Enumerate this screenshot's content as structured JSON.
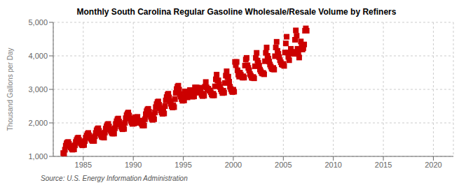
{
  "chart_data": {
    "type": "scatter",
    "title": "Monthly South Carolina Regular Gasoline Wholesale/Resale Volume by Refiners",
    "ylabel": "Thousand Gallons per Day",
    "annotation": "Source: U.S. Energy Information Administration",
    "color": "#cc0000",
    "marker": "square",
    "grid": true,
    "xlim": [
      1982.0,
      2022.0
    ],
    "ylim": [
      1000,
      5000
    ],
    "xticks": [
      1985,
      1990,
      1995,
      2000,
      2005,
      2010,
      2015,
      2020
    ],
    "yticks": [
      {
        "value": 1000,
        "label": "1,000"
      },
      {
        "value": 2000,
        "label": "2,000"
      },
      {
        "value": 3000,
        "label": "3,000"
      },
      {
        "value": 4000,
        "label": "4,000"
      },
      {
        "value": 5000,
        "label": "5,000"
      }
    ],
    "x": [
      1983.0,
      1983.083,
      1983.167,
      1983.25,
      1983.333,
      1983.417,
      1983.5,
      1983.583,
      1983.667,
      1983.75,
      1983.833,
      1983.917,
      1984.0,
      1984.083,
      1984.167,
      1984.25,
      1984.333,
      1984.417,
      1984.5,
      1984.583,
      1984.667,
      1984.75,
      1984.833,
      1984.917,
      1985.0,
      1985.083,
      1985.167,
      1985.25,
      1985.333,
      1985.417,
      1985.5,
      1985.583,
      1985.667,
      1985.75,
      1985.833,
      1985.917,
      1986.0,
      1986.083,
      1986.167,
      1986.25,
      1986.333,
      1986.417,
      1986.5,
      1986.583,
      1986.667,
      1986.75,
      1986.833,
      1986.917,
      1987.0,
      1987.083,
      1987.167,
      1987.25,
      1987.333,
      1987.417,
      1987.5,
      1987.583,
      1987.667,
      1987.75,
      1987.833,
      1987.917,
      1988.0,
      1988.083,
      1988.167,
      1988.25,
      1988.333,
      1988.417,
      1988.5,
      1988.583,
      1988.667,
      1988.75,
      1988.833,
      1988.917,
      1989.0,
      1989.083,
      1989.167,
      1989.25,
      1989.333,
      1989.417,
      1989.5,
      1989.583,
      1989.667,
      1989.75,
      1989.833,
      1989.917,
      1990.0,
      1990.083,
      1990.167,
      1990.25,
      1990.333,
      1990.417,
      1990.5,
      1990.583,
      1990.667,
      1990.75,
      1990.833,
      1990.917,
      1991.0,
      1991.083,
      1991.167,
      1991.25,
      1991.333,
      1991.417,
      1991.5,
      1991.583,
      1991.667,
      1991.75,
      1991.833,
      1991.917,
      1992.0,
      1992.083,
      1992.167,
      1992.25,
      1992.333,
      1992.417,
      1992.5,
      1992.583,
      1992.667,
      1992.75,
      1992.833,
      1992.917,
      1993.0,
      1993.083,
      1993.167,
      1993.25,
      1993.333,
      1993.417,
      1993.5,
      1993.583,
      1993.667,
      1993.75,
      1993.833,
      1993.917,
      1994.0,
      1994.083,
      1994.167,
      1994.25,
      1994.333,
      1994.417,
      1994.5,
      1994.583,
      1994.667,
      1994.75,
      1994.833,
      1994.917,
      1995.0,
      1995.083,
      1995.167,
      1995.25,
      1995.333,
      1995.417,
      1995.5,
      1995.583,
      1995.667,
      1995.75,
      1995.833,
      1995.917,
      1996.0,
      1996.083,
      1996.167,
      1996.25,
      1996.333,
      1996.417,
      1996.5,
      1996.583,
      1996.667,
      1996.75,
      1996.833,
      1996.917,
      1997.0,
      1997.083,
      1997.167,
      1997.25,
      1997.333,
      1997.417,
      1997.5,
      1997.583,
      1997.667,
      1997.75,
      1997.833,
      1997.917,
      1998.0,
      1998.083,
      1998.167,
      1998.25,
      1998.333,
      1998.417,
      1998.5,
      1998.583,
      1998.667,
      1998.75,
      1998.833,
      1998.917,
      1999.0,
      1999.083,
      1999.167,
      1999.25,
      1999.333,
      1999.417,
      1999.5,
      1999.583,
      1999.667,
      1999.75,
      1999.833,
      1999.917,
      2000.0,
      2000.083,
      2000.167,
      2000.25,
      2000.333,
      2000.417,
      2000.5,
      2000.583,
      2000.667,
      2000.75,
      2000.833,
      2000.917,
      2001.0,
      2001.083,
      2001.167,
      2001.25,
      2001.333,
      2001.417,
      2001.5,
      2001.583,
      2001.667,
      2001.75,
      2001.833,
      2001.917,
      2002.0,
      2002.083,
      2002.167,
      2002.25,
      2002.333,
      2002.417,
      2002.5,
      2002.583,
      2002.667,
      2002.75,
      2002.833,
      2002.917,
      2003.0,
      2003.083,
      2003.167,
      2003.25,
      2003.333,
      2003.417,
      2003.5,
      2003.583,
      2003.667,
      2003.75,
      2003.833,
      2003.917,
      2004.0,
      2004.083,
      2004.167,
      2004.25,
      2004.333,
      2004.417,
      2004.5,
      2004.583,
      2004.667,
      2004.75,
      2004.833,
      2004.917,
      2005.0,
      2005.083,
      2005.167,
      2005.25,
      2005.333,
      2005.417,
      2005.5,
      2005.583,
      2005.667,
      2005.75,
      2005.833,
      2005.917,
      2006.0,
      2006.083,
      2006.167,
      2006.25,
      2006.333,
      2006.417,
      2006.5,
      2006.583,
      2006.667,
      2006.75,
      2006.833,
      2006.917,
      2007.0,
      2007.083,
      2007.167,
      2007.25,
      2007.333
    ],
    "values": [
      1100,
      1080,
      1200,
      1320,
      1390,
      1420,
      1430,
      1370,
      1310,
      1270,
      1230,
      1200,
      1240,
      1210,
      1330,
      1430,
      1490,
      1540,
      1560,
      1490,
      1430,
      1390,
      1350,
      1330,
      1370,
      1340,
      1460,
      1560,
      1620,
      1670,
      1700,
      1630,
      1570,
      1530,
      1490,
      1460,
      1500,
      1460,
      1600,
      1700,
      1780,
      1820,
      1840,
      1760,
      1690,
      1640,
      1590,
      1570,
      1600,
      1560,
      1710,
      1830,
      1900,
      1950,
      1970,
      1890,
      1810,
      1760,
      1710,
      1680,
      1730,
      1680,
      1840,
      1970,
      2050,
      2110,
      2130,
      2040,
      1960,
      1900,
      1850,
      1810,
      1870,
      1820,
      2000,
      2140,
      2230,
      2280,
      2310,
      2220,
      2130,
      2060,
      2010,
      1970,
      2040,
      1980,
      2170,
      2060,
      2120,
      2180,
      2060,
      2000,
      2070,
      2020,
      1970,
      1920,
      1960,
      1920,
      2110,
      2260,
      2350,
      2400,
      2420,
      2330,
      2240,
      2180,
      2120,
      2090,
      2160,
      2110,
      2310,
      2470,
      2560,
      2620,
      2640,
      2540,
      2440,
      2370,
      2310,
      2270,
      2340,
      2280,
      2500,
      2670,
      2770,
      2840,
      2870,
      2760,
      2650,
      2570,
      2500,
      2460,
      2530,
      2470,
      2710,
      2890,
      3010,
      3080,
      3110,
      2990,
      2860,
      2780,
      2710,
      2660,
      2730,
      2670,
      2940,
      2820,
      2870,
      2760,
      2810,
      2890,
      2980,
      2910,
      2830,
      2780,
      2850,
      2790,
      3060,
      3000,
      3060,
      2910,
      2900,
      2950,
      3050,
      3000,
      2840,
      2800,
      2870,
      2810,
      3080,
      3220,
      3060,
      2990,
      3020,
      2970,
      2960,
      2910,
      2850,
      2820,
      2870,
      2820,
      3090,
      3300,
      3440,
      3260,
      3270,
      3150,
      3070,
      3000,
      2940,
      2890,
      2960,
      2900,
      3190,
      3410,
      3540,
      3360,
      3380,
      3230,
      3080,
      3010,
      2950,
      2920,
      2990,
      2930,
      3820,
      3720,
      3820,
      3570,
      3440,
      3380,
      3500,
      3440,
      3380,
      3350,
      3390,
      3350,
      3710,
      3890,
      3940,
      3720,
      3640,
      3570,
      3460,
      3410,
      3350,
      3340,
      3370,
      3330,
      3690,
      3940,
      4090,
      3860,
      3790,
      3710,
      3590,
      3540,
      3490,
      3470,
      3490,
      3450,
      3840,
      4090,
      4250,
      4000,
      3920,
      3830,
      3740,
      3680,
      3620,
      3600,
      3640,
      3590,
      3990,
      4250,
      4420,
      4150,
      4060,
      3960,
      3870,
      3810,
      3750,
      3730,
      3760,
      3700,
      4100,
      4370,
      4570,
      4100,
      3970,
      3870,
      4070,
      4210,
      4110,
      4080,
      4120,
      4060,
      4480,
      4760,
      4600,
      4210,
      4060,
      3950,
      4200,
      4430,
      4270,
      4190,
      4230,
      4340,
      4750,
      4820,
      4750
    ]
  }
}
